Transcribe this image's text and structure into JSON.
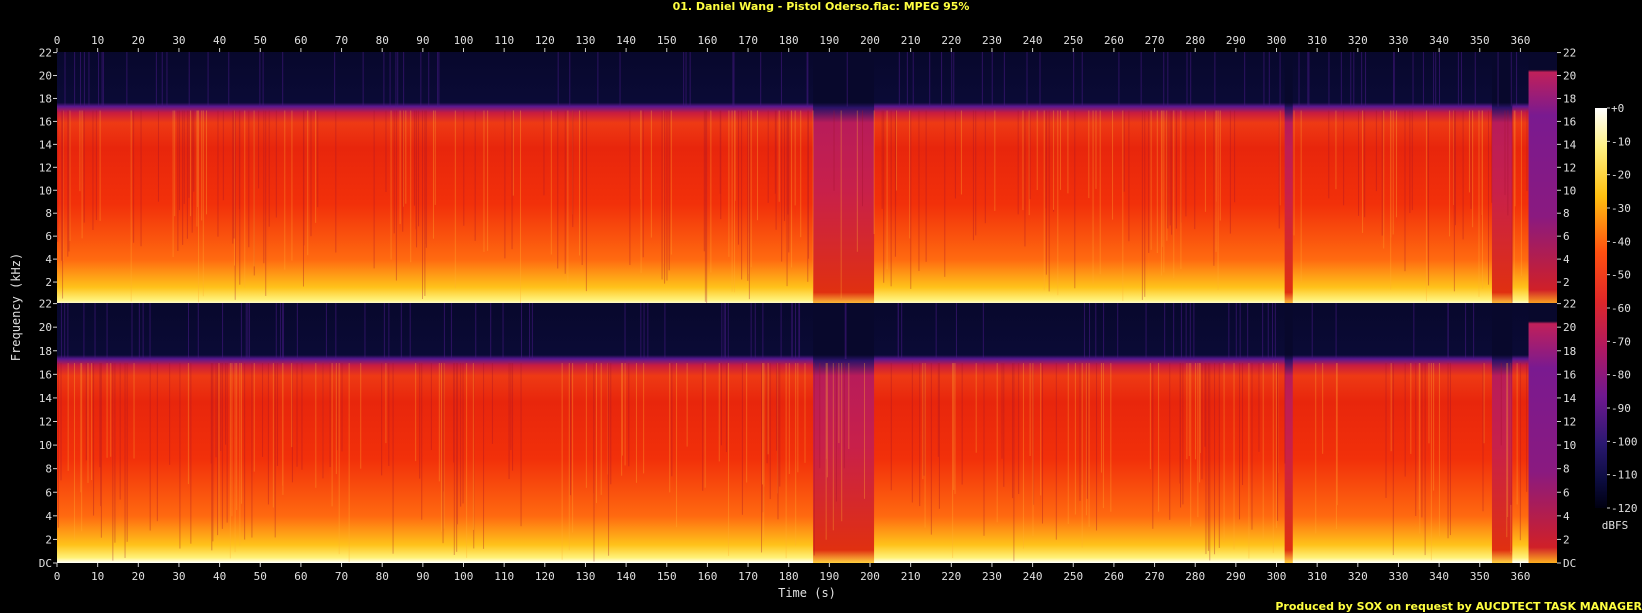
{
  "title": "01. Daniel Wang - Pistol Oderso.flac: MPEG 95%",
  "credit": "Produced by SOX on request by AUCDTECT TASK MANAGER",
  "chart_data": {
    "type": "heatmap",
    "title": "01. Daniel Wang - Pistol Oderso.flac: MPEG 95%",
    "xlabel": "Time (s)",
    "ylabel": "Frequency (kHz)",
    "xlim": [
      0,
      369
    ],
    "ylim": [
      0,
      22.05
    ],
    "x_ticks": [
      0,
      10,
      20,
      30,
      40,
      50,
      60,
      70,
      80,
      90,
      100,
      110,
      120,
      130,
      140,
      150,
      160,
      170,
      180,
      190,
      200,
      210,
      220,
      230,
      240,
      250,
      260,
      270,
      280,
      290,
      300,
      310,
      320,
      330,
      340,
      350,
      360
    ],
    "y_ticks": [
      "DC",
      "2",
      "4",
      "6",
      "8",
      "10",
      "12",
      "14",
      "16",
      "18",
      "20",
      "22"
    ],
    "channels": 2,
    "colorbar": {
      "label": "dBFS",
      "ticks": [
        "+0",
        "-10",
        "-20",
        "-30",
        "-40",
        "-50",
        "-60",
        "-70",
        "-80",
        "-90",
        "-100",
        "-110",
        "-120"
      ],
      "range": [
        -120,
        0
      ]
    },
    "features": {
      "lowpass_cutoff_khz": 17.3,
      "dropouts_s": [
        [
          186,
          201
        ],
        [
          302,
          304
        ],
        [
          353,
          358
        ]
      ],
      "end_section_s": [
        362,
        369
      ],
      "end_section_cutoff_khz": 20.5
    }
  }
}
